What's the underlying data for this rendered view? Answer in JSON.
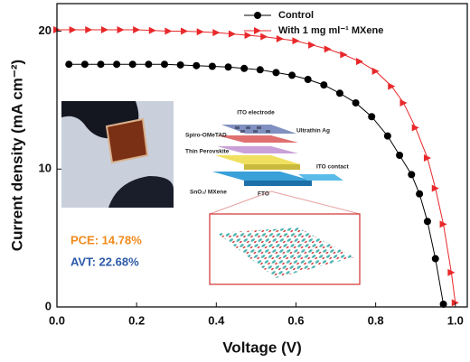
{
  "chart_data": {
    "type": "line",
    "xlabel": "Voltage (V)",
    "ylabel": "Current density (mA cm⁻²)",
    "xlim": [
      0,
      1.03
    ],
    "ylim": [
      0,
      22
    ],
    "xticks": [
      {
        "value": 0,
        "label": "0.0"
      },
      0.2,
      0.4,
      0.6,
      0.8,
      {
        "value": 1,
        "label": "1.0"
      }
    ],
    "yticks": [
      0,
      10,
      20
    ],
    "legend": "upper right",
    "series": [
      {
        "name": "Control",
        "color": "#000000",
        "marker": "circle",
        "x": [
          0.03,
          0.07,
          0.11,
          0.15,
          0.19,
          0.23,
          0.27,
          0.31,
          0.35,
          0.39,
          0.43,
          0.47,
          0.51,
          0.55,
          0.59,
          0.63,
          0.67,
          0.71,
          0.75,
          0.79,
          0.83,
          0.86,
          0.89,
          0.91,
          0.93,
          0.95,
          0.97
        ],
        "values": [
          17.6,
          17.6,
          17.6,
          17.6,
          17.6,
          17.6,
          17.6,
          17.55,
          17.5,
          17.45,
          17.4,
          17.3,
          17.2,
          17.0,
          16.8,
          16.5,
          16.1,
          15.5,
          14.8,
          13.8,
          12.4,
          11.0,
          9.6,
          8.2,
          6.2,
          3.5,
          0.2
        ]
      },
      {
        "name": "With 1 mg ml⁻¹ MXene",
        "color": "#e8282a",
        "marker": "triangle-right",
        "x": [
          0.0,
          0.04,
          0.08,
          0.12,
          0.16,
          0.2,
          0.24,
          0.28,
          0.32,
          0.36,
          0.4,
          0.44,
          0.48,
          0.52,
          0.56,
          0.6,
          0.64,
          0.68,
          0.72,
          0.76,
          0.8,
          0.84,
          0.87,
          0.9,
          0.93,
          0.95,
          0.97,
          0.99,
          1.0
        ],
        "values": [
          20.1,
          20.1,
          20.1,
          20.1,
          20.1,
          20.1,
          20.05,
          20.0,
          20.0,
          19.95,
          19.9,
          19.8,
          19.7,
          19.6,
          19.45,
          19.3,
          19.0,
          18.7,
          18.3,
          17.8,
          17.1,
          16.0,
          14.8,
          13.0,
          10.8,
          8.6,
          6.0,
          2.5,
          0.3
        ]
      }
    ],
    "annotations": {
      "pce": "PCE: 14.78%",
      "avt": "AVT:  22.68%",
      "schematic": [
        "ITO electrode",
        "Spiro-OMeTAD",
        "Ultrathin Ag",
        "Thin Perovskite",
        "ITO contact",
        "SnO₂/ MXene",
        "FTO"
      ]
    }
  }
}
